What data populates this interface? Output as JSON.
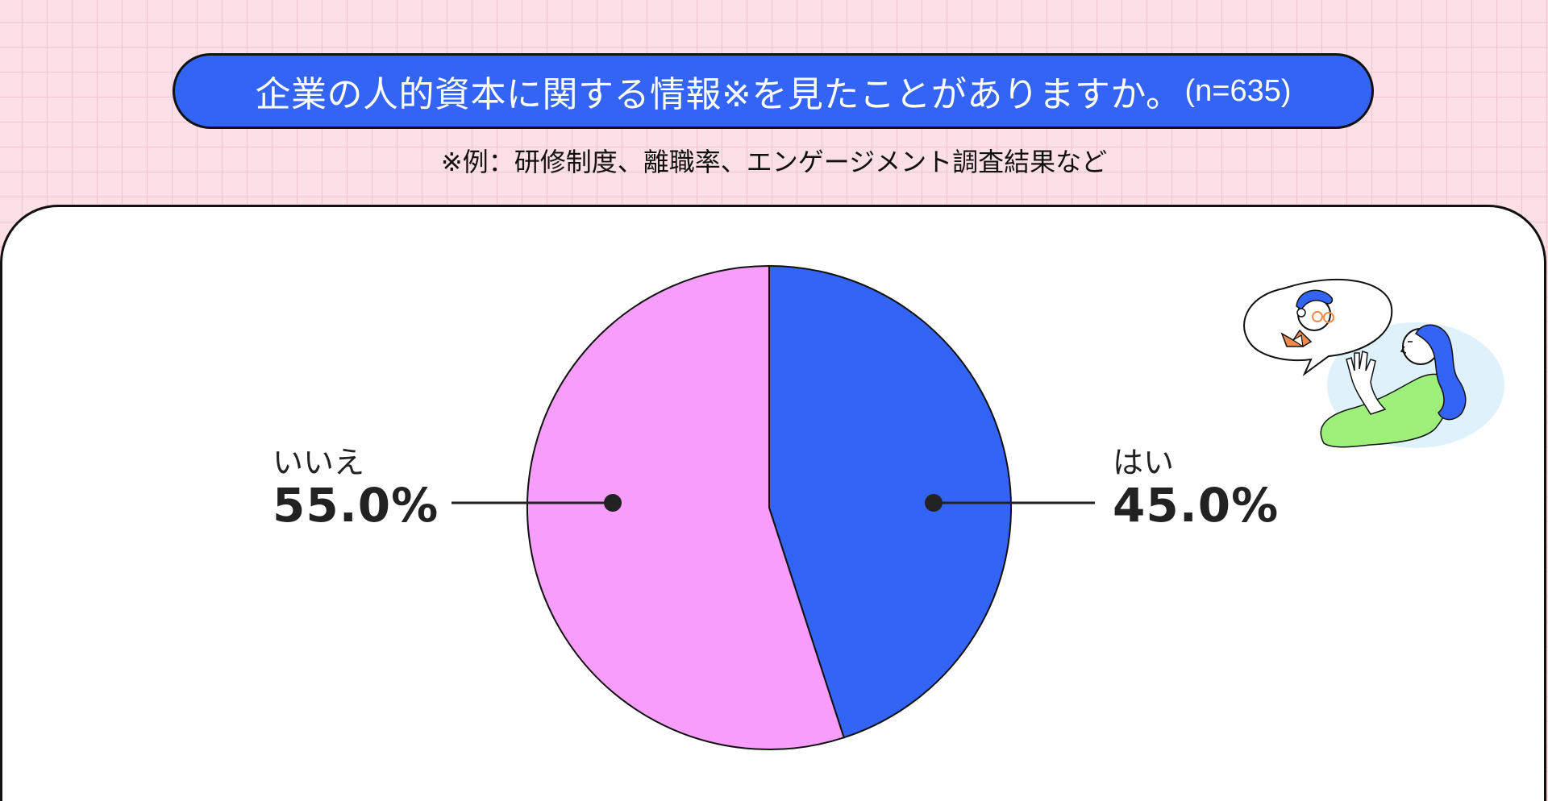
{
  "header": {
    "question": "企業の人的資本に関する情報※を見たことがありますか。",
    "sample_size": "(n=635)",
    "note": "※例：研修制度、離職率、エンゲージメント調査結果など"
  },
  "colors": {
    "yes": "#3464f6",
    "no": "#f79dfc",
    "title_bg": "#3464f6",
    "page_bg": "#fde0e6"
  },
  "chart_data": {
    "type": "pie",
    "start": "12 o'clock, clockwise",
    "legend": "none (labels beside slices)",
    "slices": [
      {
        "label": "はい",
        "value": 45.0,
        "display": "45.0%",
        "color": "#3464f6"
      },
      {
        "label": "いいえ",
        "value": 55.0,
        "display": "55.0%",
        "color": "#f79dfc"
      }
    ]
  },
  "illustration": {
    "icon": "people-conversation-illustration"
  }
}
